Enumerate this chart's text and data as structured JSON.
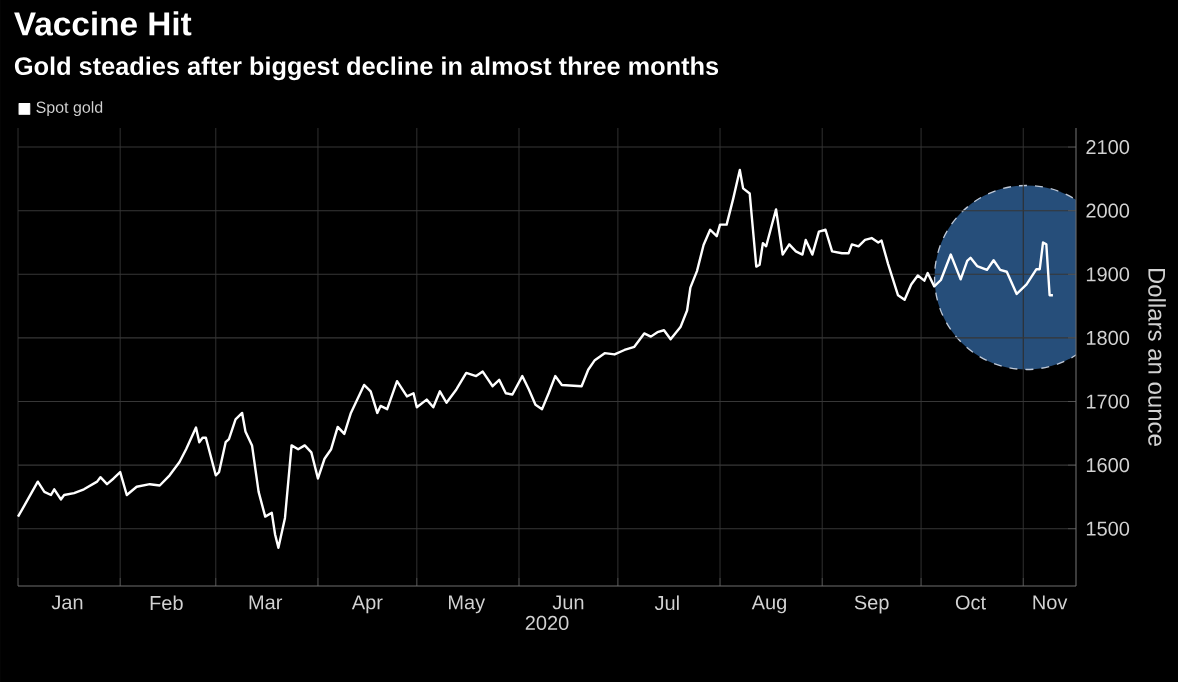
{
  "chart_data": {
    "type": "line",
    "title": "Vaccine Hit",
    "subtitle": "Gold steadies after biggest decline in almost three months",
    "xlabel": "2020",
    "ylabel": "Dollars an ounce",
    "x": [
      "2020-01-01",
      "2020-01-03",
      "2020-01-07",
      "2020-01-09",
      "2020-01-11",
      "2020-01-12",
      "2020-01-14",
      "2020-01-15",
      "2020-01-18",
      "2020-01-21",
      "2020-01-25",
      "2020-01-26",
      "2020-01-28",
      "2020-01-30",
      "2020-02-01",
      "2020-02-03",
      "2020-02-06",
      "2020-02-10",
      "2020-02-13",
      "2020-02-16",
      "2020-02-19",
      "2020-02-21",
      "2020-02-24",
      "2020-02-25",
      "2020-02-26",
      "2020-02-27",
      "2020-03-01",
      "2020-03-02",
      "2020-03-04",
      "2020-03-05",
      "2020-03-07",
      "2020-03-09",
      "2020-03-10",
      "2020-03-12",
      "2020-03-14",
      "2020-03-16",
      "2020-03-18",
      "2020-03-19",
      "2020-03-20",
      "2020-03-22",
      "2020-03-24",
      "2020-03-26",
      "2020-03-28",
      "2020-03-30",
      "2020-04-01",
      "2020-04-03",
      "2020-04-05",
      "2020-04-07",
      "2020-04-09",
      "2020-04-11",
      "2020-04-15",
      "2020-04-17",
      "2020-04-19",
      "2020-04-20",
      "2020-04-22",
      "2020-04-25",
      "2020-04-28",
      "2020-04-30",
      "2020-05-01",
      "2020-05-04",
      "2020-05-06",
      "2020-05-08",
      "2020-05-10",
      "2020-05-13",
      "2020-05-16",
      "2020-05-19",
      "2020-05-21",
      "2020-05-24",
      "2020-05-26",
      "2020-05-28",
      "2020-05-30",
      "2020-06-02",
      "2020-06-04",
      "2020-06-06",
      "2020-06-08",
      "2020-06-10",
      "2020-06-12",
      "2020-06-14",
      "2020-06-20",
      "2020-06-22",
      "2020-06-24",
      "2020-06-27",
      "2020-06-30",
      "2020-07-03",
      "2020-07-06",
      "2020-07-09",
      "2020-07-11",
      "2020-07-13",
      "2020-07-15",
      "2020-07-17",
      "2020-07-20",
      "2020-07-22",
      "2020-07-23",
      "2020-07-25",
      "2020-07-27",
      "2020-07-29",
      "2020-07-31",
      "2020-08-01",
      "2020-08-03",
      "2020-08-05",
      "2020-08-07",
      "2020-08-08",
      "2020-08-10",
      "2020-08-12",
      "2020-08-13",
      "2020-08-14",
      "2020-08-15",
      "2020-08-17",
      "2020-08-18",
      "2020-08-20",
      "2020-08-22",
      "2020-08-24",
      "2020-08-26",
      "2020-08-27",
      "2020-08-29",
      "2020-08-31",
      "2020-09-02",
      "2020-09-04",
      "2020-09-07",
      "2020-09-09",
      "2020-09-10",
      "2020-09-12",
      "2020-09-14",
      "2020-09-16",
      "2020-09-18",
      "2020-09-19",
      "2020-09-21",
      "2020-09-24",
      "2020-09-26",
      "2020-09-28",
      "2020-09-30",
      "2020-10-02",
      "2020-10-03",
      "2020-10-05",
      "2020-10-07",
      "2020-10-10",
      "2020-10-13",
      "2020-10-15",
      "2020-10-16",
      "2020-10-18",
      "2020-10-21",
      "2020-10-23",
      "2020-10-25",
      "2020-10-27",
      "2020-10-30",
      "2020-11-02",
      "2020-11-05",
      "2020-11-06",
      "2020-11-07",
      "2020-11-08",
      "2020-11-09",
      "2020-11-10"
    ],
    "series": [
      {
        "name": "Spot gold",
        "color": "#ffffff",
        "values": [
          1519,
          1537,
          1574,
          1558,
          1553,
          1562,
          1546,
          1553,
          1556,
          1562,
          1574,
          1581,
          1570,
          1579,
          1589,
          1553,
          1566,
          1570,
          1568,
          1584,
          1605,
          1625,
          1659,
          1636,
          1643,
          1643,
          1584,
          1589,
          1636,
          1641,
          1672,
          1682,
          1653,
          1631,
          1558,
          1519,
          1525,
          1491,
          1470,
          1517,
          1631,
          1625,
          1631,
          1620,
          1579,
          1610,
          1625,
          1660,
          1649,
          1682,
          1726,
          1716,
          1682,
          1693,
          1688,
          1732,
          1708,
          1713,
          1691,
          1703,
          1691,
          1716,
          1698,
          1719,
          1745,
          1740,
          1747,
          1724,
          1734,
          1713,
          1711,
          1740,
          1719,
          1695,
          1688,
          1713,
          1740,
          1726,
          1724,
          1750,
          1765,
          1776,
          1774,
          1781,
          1786,
          1807,
          1802,
          1809,
          1812,
          1798,
          1817,
          1843,
          1879,
          1905,
          1946,
          1970,
          1960,
          1978,
          1978,
          2019,
          2064,
          2035,
          2027,
          1912,
          1915,
          1949,
          1944,
          1983,
          2002,
          1931,
          1947,
          1936,
          1931,
          1954,
          1931,
          1967,
          1970,
          1936,
          1933,
          1933,
          1947,
          1944,
          1954,
          1957,
          1950,
          1953,
          1916,
          1867,
          1860,
          1884,
          1898,
          1890,
          1902,
          1881,
          1891,
          1931,
          1892,
          1921,
          1926,
          1913,
          1907,
          1922,
          1907,
          1904,
          1869,
          1884,
          1908,
          1908,
          1950,
          1947,
          1867,
          1867
        ]
      }
    ],
    "xlim": [
      "2020-01-01",
      "2020-11-17"
    ],
    "xticks": [
      {
        "value": "2020-01-01",
        "label": null
      },
      {
        "value": "2020-01-16",
        "label": "Jan"
      },
      {
        "value": "2020-02-01",
        "label": null
      },
      {
        "value": "2020-02-15",
        "label": "Feb"
      },
      {
        "value": "2020-03-01",
        "label": null
      },
      {
        "value": "2020-03-16",
        "label": "Mar"
      },
      {
        "value": "2020-04-01",
        "label": null
      },
      {
        "value": "2020-04-16",
        "label": "Apr"
      },
      {
        "value": "2020-05-01",
        "label": null
      },
      {
        "value": "2020-05-16",
        "label": "May"
      },
      {
        "value": "2020-06-01",
        "label": null
      },
      {
        "value": "2020-06-16",
        "label": "Jun"
      },
      {
        "value": "2020-07-01",
        "label": null
      },
      {
        "value": "2020-07-16",
        "label": "Jul"
      },
      {
        "value": "2020-08-01",
        "label": null
      },
      {
        "value": "2020-08-16",
        "label": "Aug"
      },
      {
        "value": "2020-09-01",
        "label": null
      },
      {
        "value": "2020-09-16",
        "label": "Sep"
      },
      {
        "value": "2020-10-01",
        "label": null
      },
      {
        "value": "2020-10-16",
        "label": "Oct"
      },
      {
        "value": "2020-11-01",
        "label": null
      },
      {
        "value": "2020-11-09",
        "label": "Nov"
      }
    ],
    "ylim": [
      1410,
      2130
    ],
    "yticks": [
      1500,
      1600,
      1700,
      1800,
      1900,
      2000,
      2100
    ],
    "grid": true,
    "legend": "top left",
    "marker": "none",
    "line_style": "solid"
  }
}
